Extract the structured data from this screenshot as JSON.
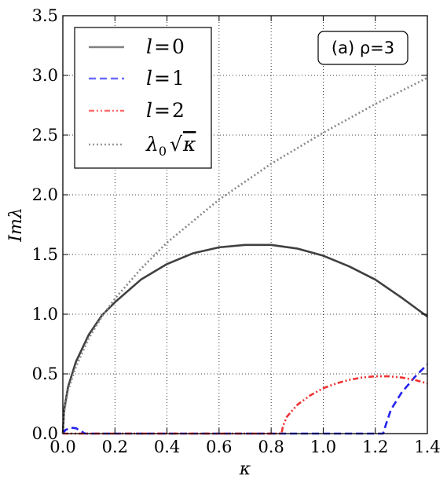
{
  "chart_data": {
    "type": "line",
    "xlabel": "κ",
    "ylabel": "Imλ",
    "xlim": [
      0,
      1.4
    ],
    "ylim": [
      0,
      3.5
    ],
    "x_ticks": [
      0.0,
      0.2,
      0.4,
      0.6,
      0.8,
      1.0,
      1.2,
      1.4
    ],
    "y_ticks": [
      0.0,
      0.5,
      1.0,
      1.5,
      2.0,
      2.5,
      3.0,
      3.5
    ],
    "x_tick_labels": [
      "0.0",
      "0.2",
      "0.4",
      "0.6",
      "0.8",
      "1.0",
      "1.2",
      "1.4"
    ],
    "y_tick_labels": [
      "0.0",
      "0.5",
      "1.0",
      "1.5",
      "2.0",
      "2.5",
      "3.0",
      "3.5"
    ],
    "grid": true,
    "legend_position": "top-left",
    "annotation": "(a)  ρ=3",
    "annotation_position": "top-right",
    "series": [
      {
        "name": "l=0",
        "color": "#404040",
        "style": "solid",
        "x": [
          0.0,
          0.005,
          0.02,
          0.05,
          0.1,
          0.15,
          0.2,
          0.3,
          0.4,
          0.5,
          0.6,
          0.7,
          0.8,
          0.9,
          1.0,
          1.1,
          1.2,
          1.3,
          1.35,
          1.4
        ],
        "y": [
          0.0,
          0.2,
          0.39,
          0.6,
          0.83,
          0.99,
          1.1,
          1.29,
          1.42,
          1.51,
          1.56,
          1.58,
          1.58,
          1.55,
          1.49,
          1.4,
          1.29,
          1.14,
          1.06,
          0.98
        ]
      },
      {
        "name": "l=1",
        "color": "#2222ee",
        "style": "dashed",
        "x": [
          0.0,
          0.01,
          0.03,
          0.05,
          0.07,
          0.085,
          0.1,
          0.2,
          0.4,
          0.6,
          0.8,
          1.0,
          1.2,
          1.23,
          1.24,
          1.26,
          1.3,
          1.35,
          1.4
        ],
        "y": [
          0.0,
          0.03,
          0.05,
          0.045,
          0.02,
          0.0,
          0.0,
          0.0,
          0.0,
          0.0,
          0.0,
          0.0,
          0.0,
          0.0,
          0.07,
          0.2,
          0.34,
          0.47,
          0.58
        ]
      },
      {
        "name": "l=2",
        "color": "#ee3333",
        "style": "dashdotdot",
        "x": [
          0.0,
          0.2,
          0.4,
          0.6,
          0.8,
          0.84,
          0.845,
          0.86,
          0.9,
          0.95,
          1.0,
          1.05,
          1.1,
          1.15,
          1.2,
          1.25,
          1.3,
          1.35,
          1.4
        ],
        "y": [
          0.0,
          0.0,
          0.0,
          0.0,
          0.0,
          0.0,
          0.06,
          0.14,
          0.24,
          0.32,
          0.38,
          0.42,
          0.45,
          0.47,
          0.48,
          0.48,
          0.47,
          0.45,
          0.42
        ]
      },
      {
        "name": "λ₀√κ",
        "color": "#888888",
        "style": "dotted",
        "x": [
          0.0,
          0.005,
          0.02,
          0.05,
          0.1,
          0.15,
          0.2,
          0.3,
          0.4,
          0.5,
          0.6,
          0.7,
          0.8,
          0.9,
          1.0,
          1.1,
          1.2,
          1.3,
          1.4
        ],
        "y": [
          0.0,
          0.18,
          0.36,
          0.56,
          0.8,
          0.98,
          1.13,
          1.38,
          1.6,
          1.78,
          1.96,
          2.11,
          2.26,
          2.39,
          2.52,
          2.64,
          2.76,
          2.87,
          2.98
        ]
      }
    ]
  },
  "legend": {
    "items": [
      {
        "label_var": "l",
        "label_eq": "=",
        "label_val": "0",
        "color": "#808080",
        "style": "solid"
      },
      {
        "label_var": "l",
        "label_eq": "=",
        "label_val": "1",
        "color": "#6b6bff",
        "style": "dashed"
      },
      {
        "label_var": "l",
        "label_eq": "=",
        "label_val": "2",
        "color": "#ff6b6b",
        "style": "dashdotdot"
      },
      {
        "label_var": "λ",
        "label_sub": "0",
        "label_sqrt": "√",
        "label_arg": "κ",
        "color": "#999999",
        "style": "dotted"
      }
    ]
  }
}
